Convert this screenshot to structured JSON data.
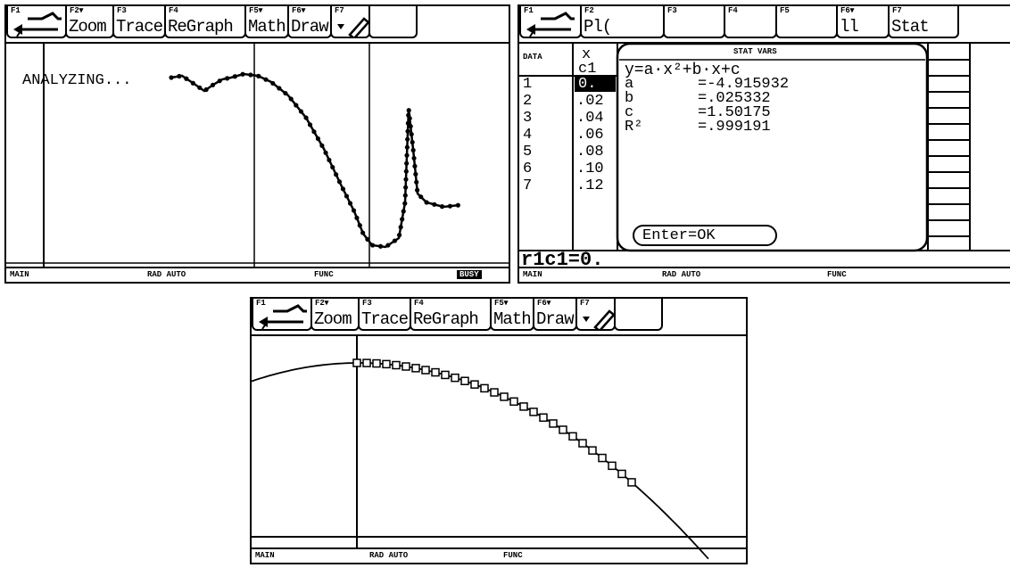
{
  "screens": [
    {
      "toolbar": [
        {
          "key": "F1"
        },
        {
          "key": "F2▾",
          "label": "Zoom"
        },
        {
          "key": "F3",
          "label": "Trace"
        },
        {
          "key": "F4",
          "label": "ReGraph"
        },
        {
          "key": "F5▾",
          "label": "Math"
        },
        {
          "key": "F6▾",
          "label": "Draw"
        },
        {
          "key": "F7"
        }
      ],
      "graph_text": "ANALYZING...",
      "status": [
        "MAIN",
        "RAD AUTO",
        "FUNC",
        "BUSY"
      ]
    },
    {
      "toolbar": [
        {
          "key": "F1"
        },
        {
          "key": "F2",
          "label": "Pl("
        },
        {
          "key": "F3"
        },
        {
          "key": "F4"
        },
        {
          "key": "F5"
        },
        {
          "key": "F6▾",
          "label": "ll"
        },
        {
          "key": "F7",
          "label": "Stat"
        }
      ],
      "table": {
        "corner": "DATA",
        "column": "x",
        "column_name": "c1",
        "rows": [
          "1",
          "2",
          "3",
          "4",
          "5",
          "6",
          "7"
        ],
        "values": [
          "0.",
          ".02",
          ".04",
          ".06",
          ".08",
          ".10",
          ".12"
        ]
      },
      "dialog": {
        "title": "STAT VARS",
        "equation": "y=a·x²+b·x+c",
        "results": [
          {
            "name": "a",
            "value": "=-4.915932"
          },
          {
            "name": "b",
            "value": "=.025332"
          },
          {
            "name": "c",
            "value": "=1.50175"
          },
          {
            "name": "R²",
            "value": "=.999191"
          }
        ],
        "button": "Enter=OK"
      },
      "entry_line": "r1c1=0.",
      "status": [
        "MAIN",
        "RAD AUTO",
        "FUNC"
      ]
    },
    {
      "toolbar": [
        {
          "key": "F1"
        },
        {
          "key": "F2▾",
          "label": "Zoom"
        },
        {
          "key": "F3",
          "label": "Trace"
        },
        {
          "key": "F4",
          "label": "ReGraph"
        },
        {
          "key": "F5▾",
          "label": "Math"
        },
        {
          "key": "F6▾",
          "label": "Draw"
        },
        {
          "key": "F7"
        }
      ],
      "status": [
        "MAIN",
        "RAD AUTO",
        "FUNC"
      ]
    }
  ]
}
